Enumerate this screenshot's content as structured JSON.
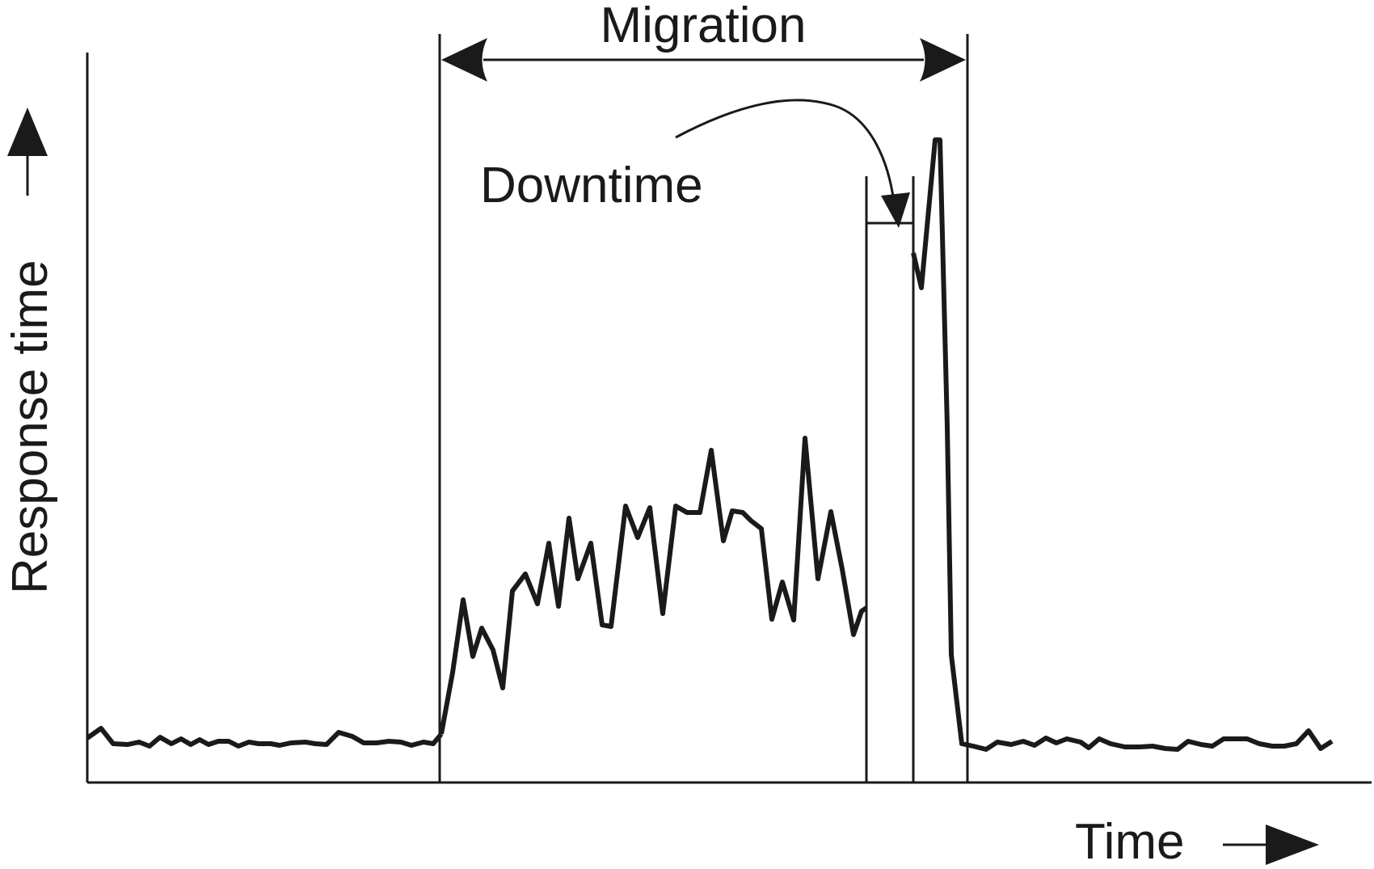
{
  "labels": {
    "y_axis": "Response time",
    "x_axis": "Time",
    "migration": "Migration",
    "downtime": "Downtime"
  },
  "colors": {
    "ink": "#1a1a1a",
    "background": "#ffffff"
  },
  "icons": {
    "y_axis_arrow": "arrow-up-icon",
    "x_axis_arrow": "arrow-right-icon",
    "migration_span": "double-arrow-icon",
    "downtime_pointer": "curved-arrow-icon"
  }
}
